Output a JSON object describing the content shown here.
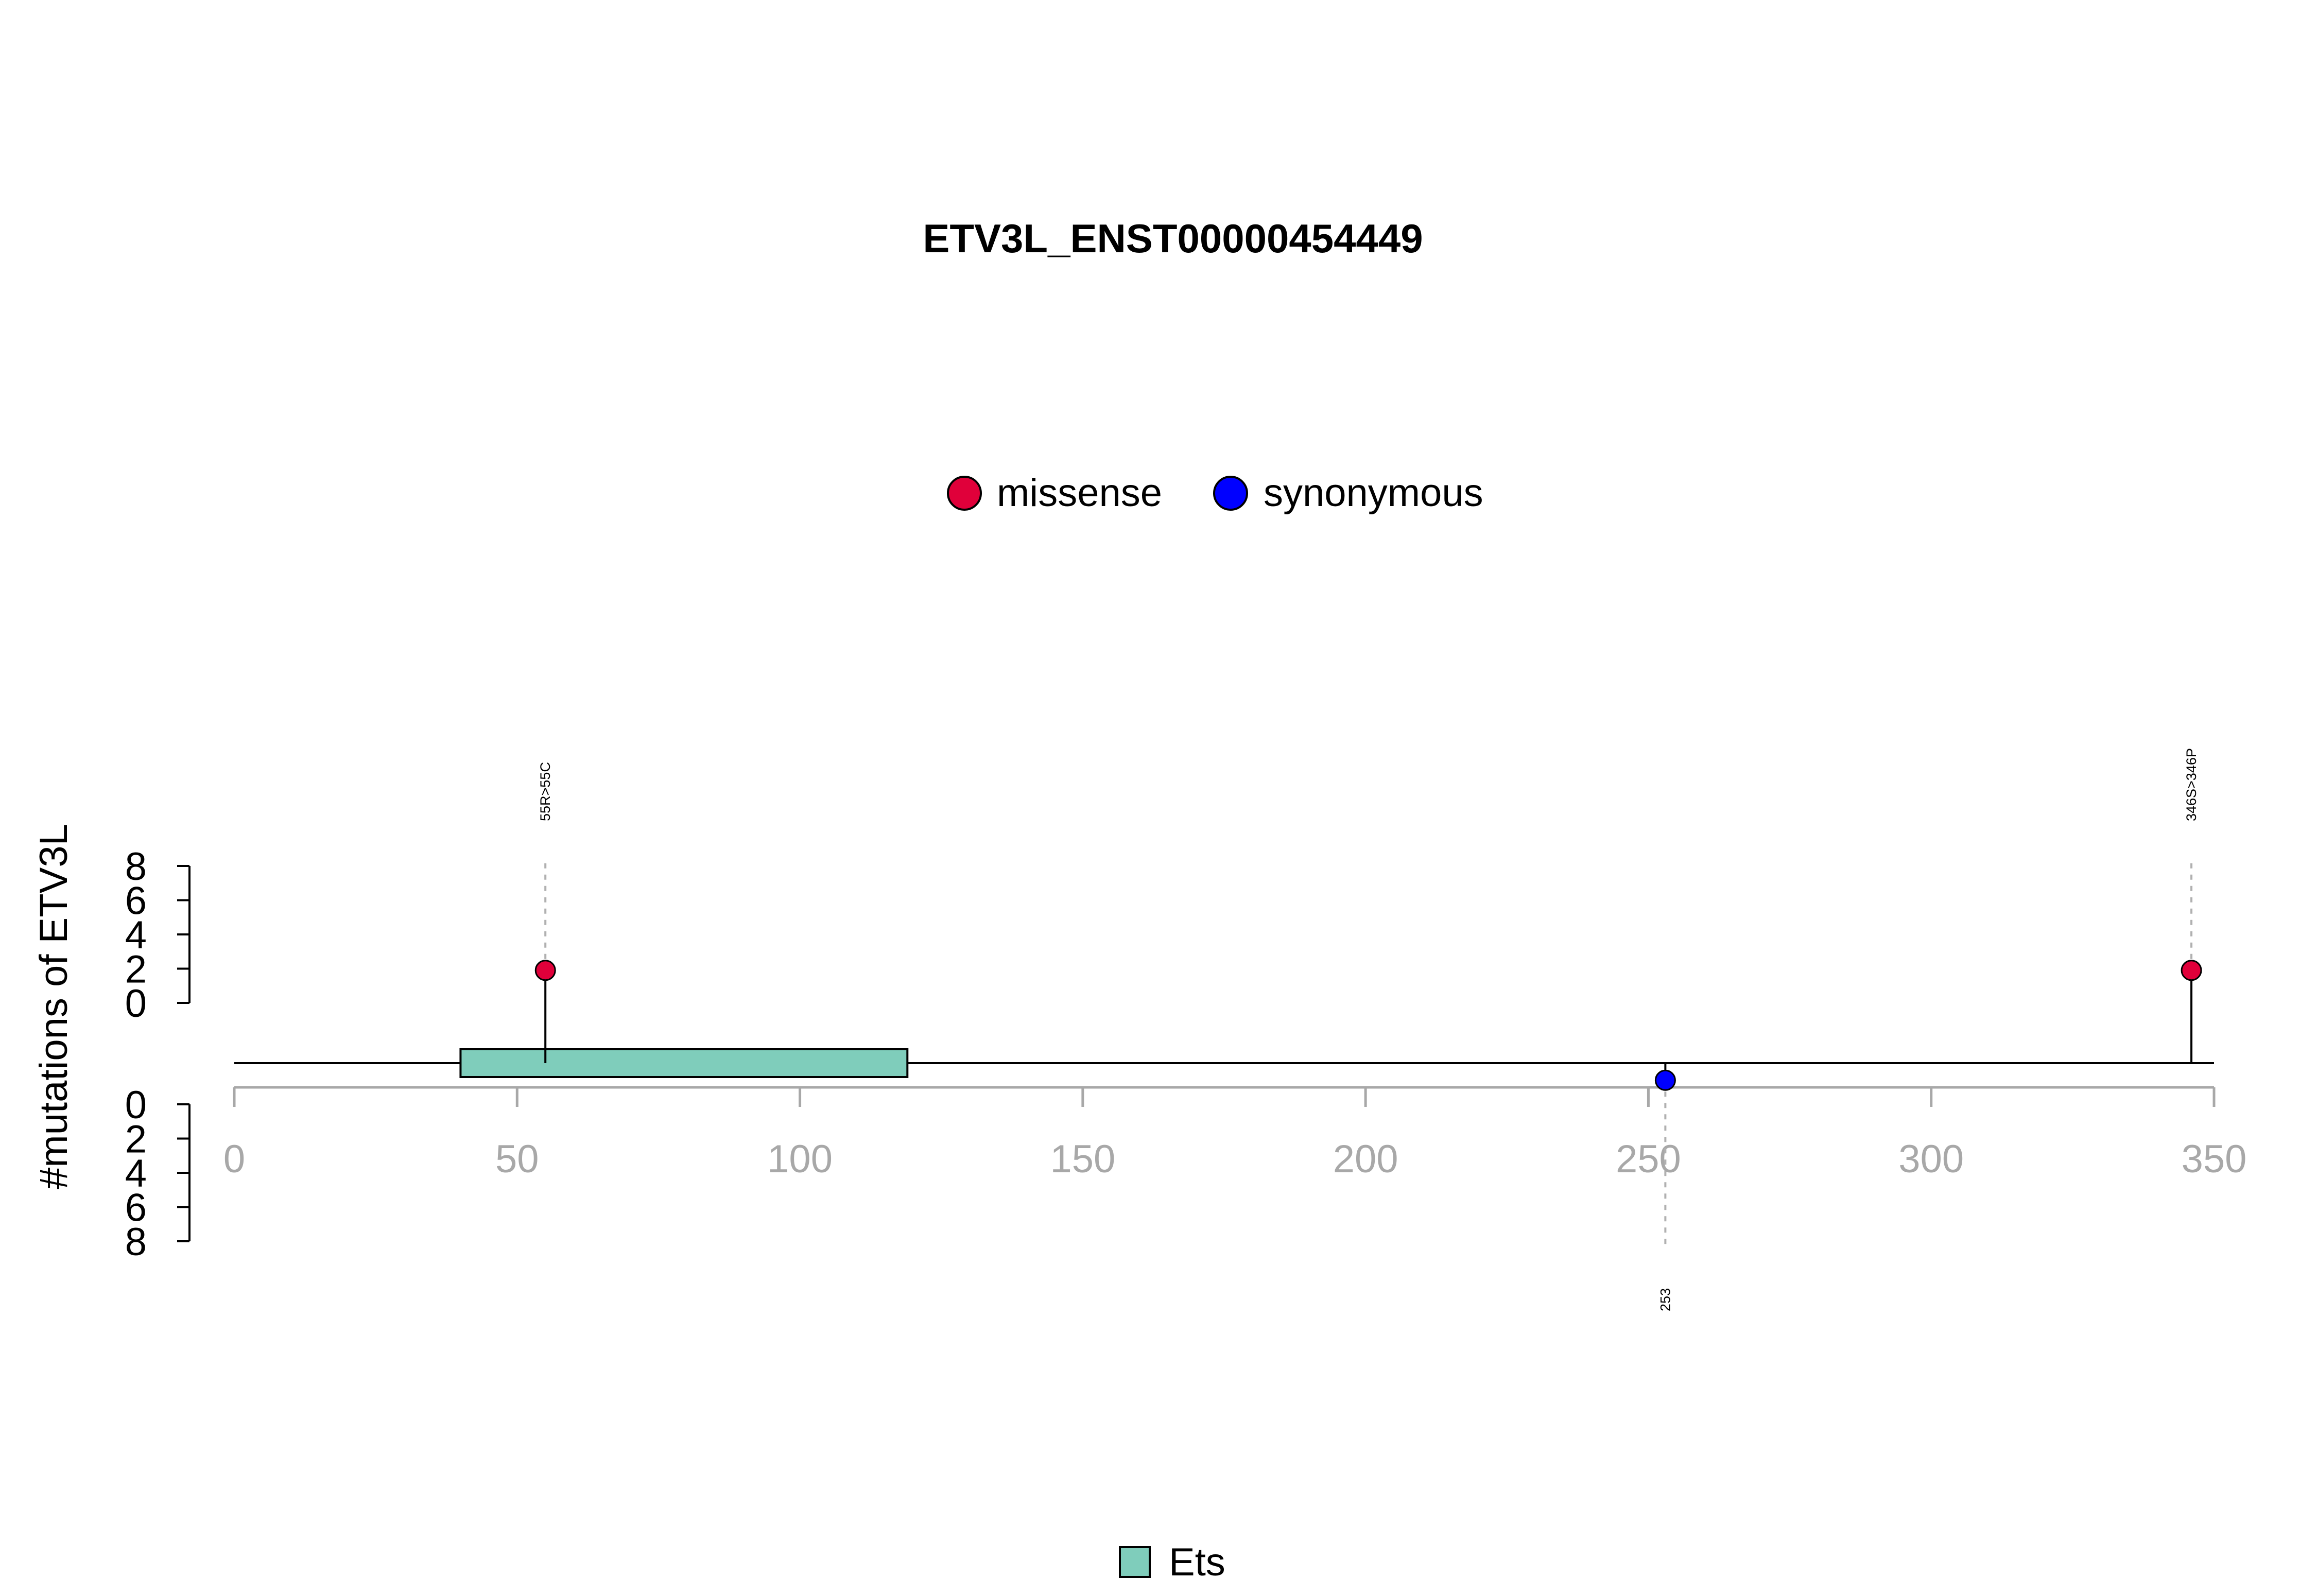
{
  "chart_data": {
    "type": "lollipop",
    "title": "ETV3L_ENST00000454449",
    "ylabel": "#mutations of ETV3L",
    "xlim": [
      0,
      350
    ],
    "x_ticks": [
      0,
      50,
      100,
      150,
      200,
      250,
      300,
      350
    ],
    "y_ticks": [
      0,
      2,
      4,
      6,
      8
    ],
    "protein_length": 350,
    "legend": {
      "position": "top-center",
      "items": [
        {
          "label": "missense",
          "color": "#e0003a"
        },
        {
          "label": "synonymous",
          "color": "#0000ff"
        }
      ]
    },
    "domains": [
      {
        "name": "Ets",
        "start": 40,
        "end": 119,
        "color": "#7fcdbb"
      }
    ],
    "mutations": [
      {
        "position": 55,
        "count": 1,
        "type": "missense",
        "side": "top",
        "label": "55R>55C"
      },
      {
        "position": 253,
        "count": 1,
        "type": "synonymous",
        "side": "bottom",
        "label": "253"
      },
      {
        "position": 346,
        "count": 1,
        "type": "missense",
        "side": "top",
        "label": "346S>346P"
      }
    ]
  }
}
